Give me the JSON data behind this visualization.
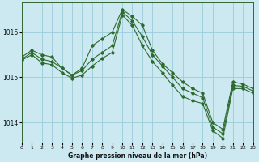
{
  "background_color": "#cce8f0",
  "grid_color": "#99ccd9",
  "line_color": "#2d6a2d",
  "title": "Graphe pression niveau de la mer (hPa)",
  "xlim": [
    0,
    23
  ],
  "ylim": [
    1013.55,
    1016.65
  ],
  "yticks": [
    1014,
    1015,
    1016
  ],
  "xticks": [
    0,
    1,
    2,
    3,
    4,
    5,
    6,
    7,
    8,
    9,
    10,
    11,
    12,
    13,
    14,
    15,
    16,
    17,
    18,
    19,
    20,
    21,
    22,
    23
  ],
  "series": [
    {
      "x": [
        0,
        1,
        2,
        3,
        4,
        5,
        6,
        7,
        8,
        9,
        10,
        11,
        12,
        13,
        14,
        15,
        16,
        17,
        18,
        19,
        20,
        21,
        22,
        23
      ],
      "y": [
        1015.45,
        1015.6,
        1015.5,
        1015.45,
        1015.2,
        1015.05,
        1015.2,
        1015.7,
        1015.85,
        1016.0,
        1016.5,
        1016.35,
        1016.15,
        1015.6,
        1015.3,
        1015.1,
        1014.9,
        1014.75,
        1014.65,
        1014.0,
        1013.85,
        1014.9,
        1014.85,
        1014.75
      ]
    },
    {
      "x": [
        0,
        1,
        2,
        3,
        4,
        5,
        6,
        7,
        8,
        9,
        10,
        11,
        12,
        13,
        14,
        15,
        16,
        17,
        18,
        19,
        20,
        21,
        22,
        23
      ],
      "y": [
        1015.4,
        1015.55,
        1015.4,
        1015.35,
        1015.2,
        1015.05,
        1015.15,
        1015.4,
        1015.55,
        1015.7,
        1016.45,
        1016.25,
        1015.9,
        1015.5,
        1015.25,
        1015.0,
        1014.75,
        1014.65,
        1014.55,
        1013.9,
        1013.75,
        1014.82,
        1014.8,
        1014.7
      ]
    },
    {
      "x": [
        0,
        1,
        2,
        3,
        4,
        5,
        6,
        7,
        8,
        9,
        10,
        11,
        12,
        13,
        14,
        15,
        16,
        17,
        18,
        19,
        20,
        21,
        22,
        23
      ],
      "y": [
        1015.38,
        1015.5,
        1015.32,
        1015.28,
        1015.1,
        1014.98,
        1015.05,
        1015.25,
        1015.42,
        1015.55,
        1016.38,
        1016.15,
        1015.7,
        1015.35,
        1015.1,
        1014.82,
        1014.58,
        1014.48,
        1014.42,
        1013.82,
        1013.65,
        1014.75,
        1014.75,
        1014.65
      ]
    }
  ]
}
